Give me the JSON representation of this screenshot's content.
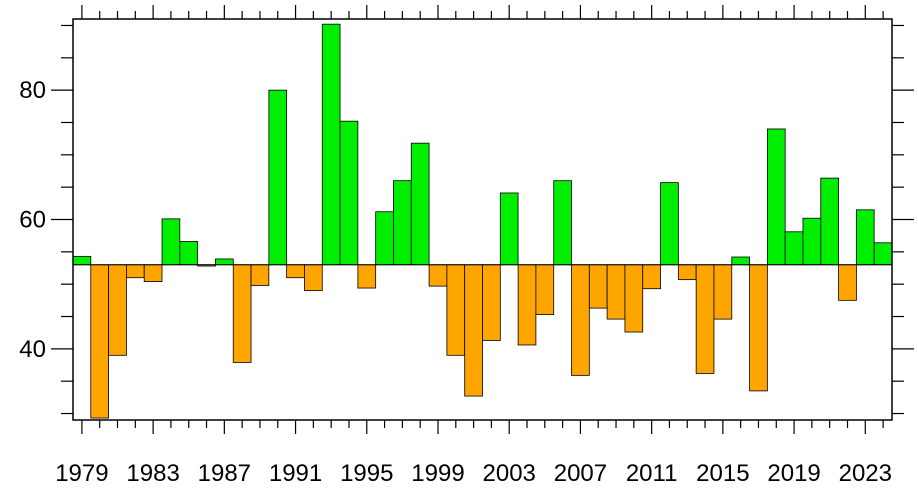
{
  "chart_data": {
    "type": "bar",
    "title": "",
    "xlabel": "",
    "ylabel": "",
    "baseline": 53,
    "ylim": [
      29,
      91
    ],
    "xlim": [
      1978.5,
      2024.5
    ],
    "grid": false,
    "legend": "none",
    "colors": {
      "above": "#00ee00",
      "below": "#ffa500",
      "stroke": "#000000"
    },
    "x_ticks": [
      1979,
      1983,
      1987,
      1991,
      1995,
      1999,
      2003,
      2007,
      2011,
      2015,
      2019,
      2023
    ],
    "x_tick_labels": [
      "1979",
      "1983",
      "1987",
      "1991",
      "1995",
      "1999",
      "2003",
      "2007",
      "2011",
      "2015",
      "2019",
      "2023"
    ],
    "y_ticks": [
      40,
      60,
      80
    ],
    "y_tick_labels": [
      "40",
      "60",
      "80"
    ],
    "years": [
      1979,
      1980,
      1981,
      1982,
      1983,
      1984,
      1985,
      1986,
      1987,
      1988,
      1989,
      1990,
      1991,
      1992,
      1993,
      1994,
      1995,
      1996,
      1997,
      1998,
      1999,
      2000,
      2001,
      2002,
      2003,
      2004,
      2005,
      2006,
      2007,
      2008,
      2009,
      2010,
      2011,
      2012,
      2013,
      2014,
      2015,
      2016,
      2017,
      2018,
      2019,
      2020,
      2021,
      2022,
      2023,
      2024
    ],
    "values": [
      54.3,
      29.3,
      39.0,
      51.0,
      50.4,
      60.1,
      56.6,
      52.8,
      53.9,
      37.9,
      49.8,
      80.0,
      51.0,
      49.0,
      90.2,
      75.2,
      49.4,
      61.2,
      66.0,
      71.8,
      49.7,
      39.0,
      32.7,
      41.3,
      64.1,
      40.6,
      45.3,
      66.0,
      35.9,
      46.3,
      44.6,
      42.6,
      49.3,
      65.7,
      50.7,
      36.2,
      44.6,
      54.2,
      33.5,
      74.0,
      58.1,
      60.2,
      66.4,
      47.5,
      61.5,
      56.4
    ]
  }
}
